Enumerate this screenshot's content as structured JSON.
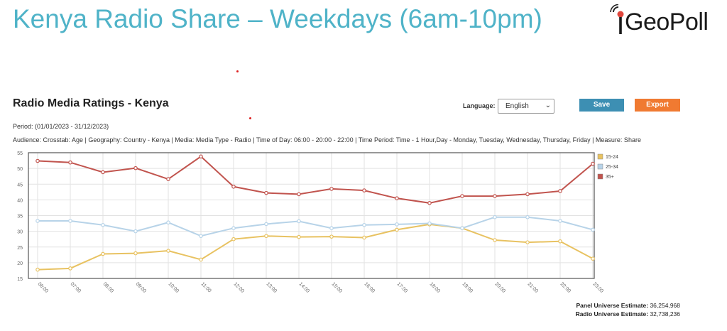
{
  "page_title": "Kenya Radio Share – Weekdays (6am-10pm)",
  "logo": {
    "text": "GeoPoll",
    "icon": "microphone-signal-icon"
  },
  "panel": {
    "title": "Radio Media Ratings - Kenya",
    "language_label": "Language:",
    "language_value": "English",
    "save_label": "Save",
    "export_label": "Export",
    "period": "Period: (01/01/2023 - 31/12/2023)",
    "audience": "Audience: Crosstab: Age | Geography: Country - Kenya | Media: Media Type - Radio | Time of Day: 06:00 - 20:00 - 22:00 | Time Period: Time - 1 Hour,Day - Monday, Tuesday, Wednesday, Thursday, Friday | Measure: Share"
  },
  "universe": {
    "panel_label": "Panel Universe Estimate:",
    "panel_value": "36,254,968",
    "radio_label": "Radio Universe Estimate:",
    "radio_value": "32,738,236"
  },
  "colors": {
    "title": "#4fb3c8",
    "save": "#3d8fb3",
    "export": "#f07a31"
  },
  "chart_data": {
    "type": "line",
    "x": [
      "06:00",
      "07:00",
      "08:00",
      "09:00",
      "10:00",
      "11:00",
      "12:00",
      "13:00",
      "14:00",
      "15:00",
      "16:00",
      "17:00",
      "18:00",
      "19:00",
      "20:00",
      "21:00",
      "22:00",
      "23:00"
    ],
    "yticks": [
      15,
      20,
      25,
      30,
      35,
      40,
      45,
      50,
      55
    ],
    "ylim": [
      15,
      55
    ],
    "grid": true,
    "legend_position": "right",
    "series": [
      {
        "name": "15-24",
        "color": "#e8c261",
        "values": [
          17.8,
          18.2,
          22.8,
          23.0,
          23.8,
          21.0,
          27.5,
          28.5,
          28.2,
          28.3,
          28.0,
          30.5,
          32.2,
          31.0,
          27.2,
          26.5,
          26.8,
          21.3
        ]
      },
      {
        "name": "25-34",
        "color": "#b7d3e8",
        "values": [
          33.3,
          33.3,
          32.0,
          30.0,
          32.8,
          28.5,
          31.0,
          32.3,
          33.2,
          31.0,
          32.0,
          32.2,
          32.5,
          31.0,
          34.5,
          34.5,
          33.3,
          30.5
        ]
      },
      {
        "name": "35+",
        "color": "#c1544e",
        "values": [
          52.4,
          51.9,
          48.8,
          50.1,
          46.6,
          53.8,
          44.2,
          42.2,
          41.8,
          43.5,
          43.0,
          40.5,
          39.0,
          41.2,
          41.2,
          41.8,
          42.8,
          51.5
        ]
      }
    ]
  }
}
